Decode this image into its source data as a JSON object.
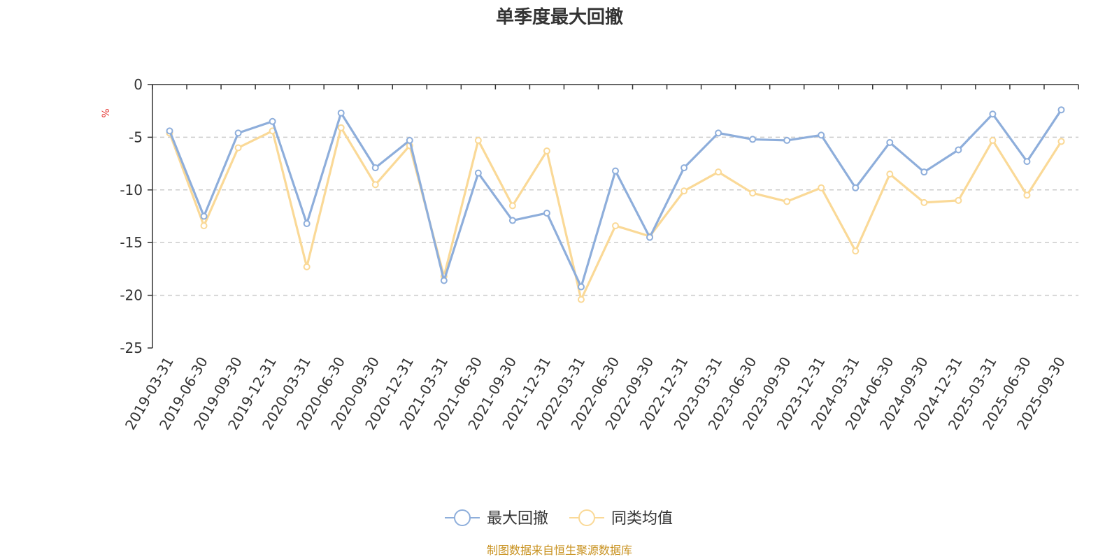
{
  "chart_data": {
    "type": "line",
    "title": "单季度最大回撤",
    "unit": "%",
    "categories": [
      "2019-03-31",
      "2019-06-30",
      "2019-09-30",
      "2019-12-31",
      "2020-03-31",
      "2020-06-30",
      "2020-09-30",
      "2020-12-31",
      "2021-03-31",
      "2021-06-30",
      "2021-09-30",
      "2021-12-31",
      "2022-03-31",
      "2022-06-30",
      "2022-09-30",
      "2022-12-31",
      "2023-03-31",
      "2023-06-30",
      "2023-09-30",
      "2023-12-31",
      "2024-03-31",
      "2024-06-30",
      "2024-09-30",
      "2024-12-31",
      "2025-03-31",
      "2025-06-30",
      "2025-09-30"
    ],
    "series": [
      {
        "name": "最大回撤",
        "color": "#8eaedb",
        "values": [
          -4.4,
          -12.5,
          -4.6,
          -3.5,
          -13.2,
          -2.7,
          -7.9,
          -5.3,
          -18.6,
          -8.4,
          -12.9,
          -12.2,
          -19.2,
          -8.2,
          -14.5,
          -7.9,
          -4.6,
          -5.2,
          -5.3,
          -4.8,
          -9.8,
          -5.5,
          -8.3,
          -6.2,
          -2.8,
          -7.3,
          -2.4
        ]
      },
      {
        "name": "同类均值",
        "color": "#fad997",
        "values": [
          -4.6,
          -13.4,
          -6.0,
          -4.4,
          -17.3,
          -4.1,
          -9.5,
          -5.8,
          -18.2,
          -5.3,
          -11.5,
          -6.3,
          -20.4,
          -13.4,
          -14.4,
          -10.1,
          -8.3,
          -10.3,
          -11.1,
          -9.8,
          -15.8,
          -8.5,
          -11.2,
          -11.0,
          -5.3,
          -10.5,
          -5.4
        ]
      }
    ],
    "ylim": [
      -25,
      0
    ],
    "yticks": [
      0,
      -5,
      -10,
      -15,
      -20,
      -25
    ],
    "grid": "horizontal-dashed",
    "legend_position": "bottom-center"
  },
  "source_note": "制图数据来自恒生聚源数据库"
}
